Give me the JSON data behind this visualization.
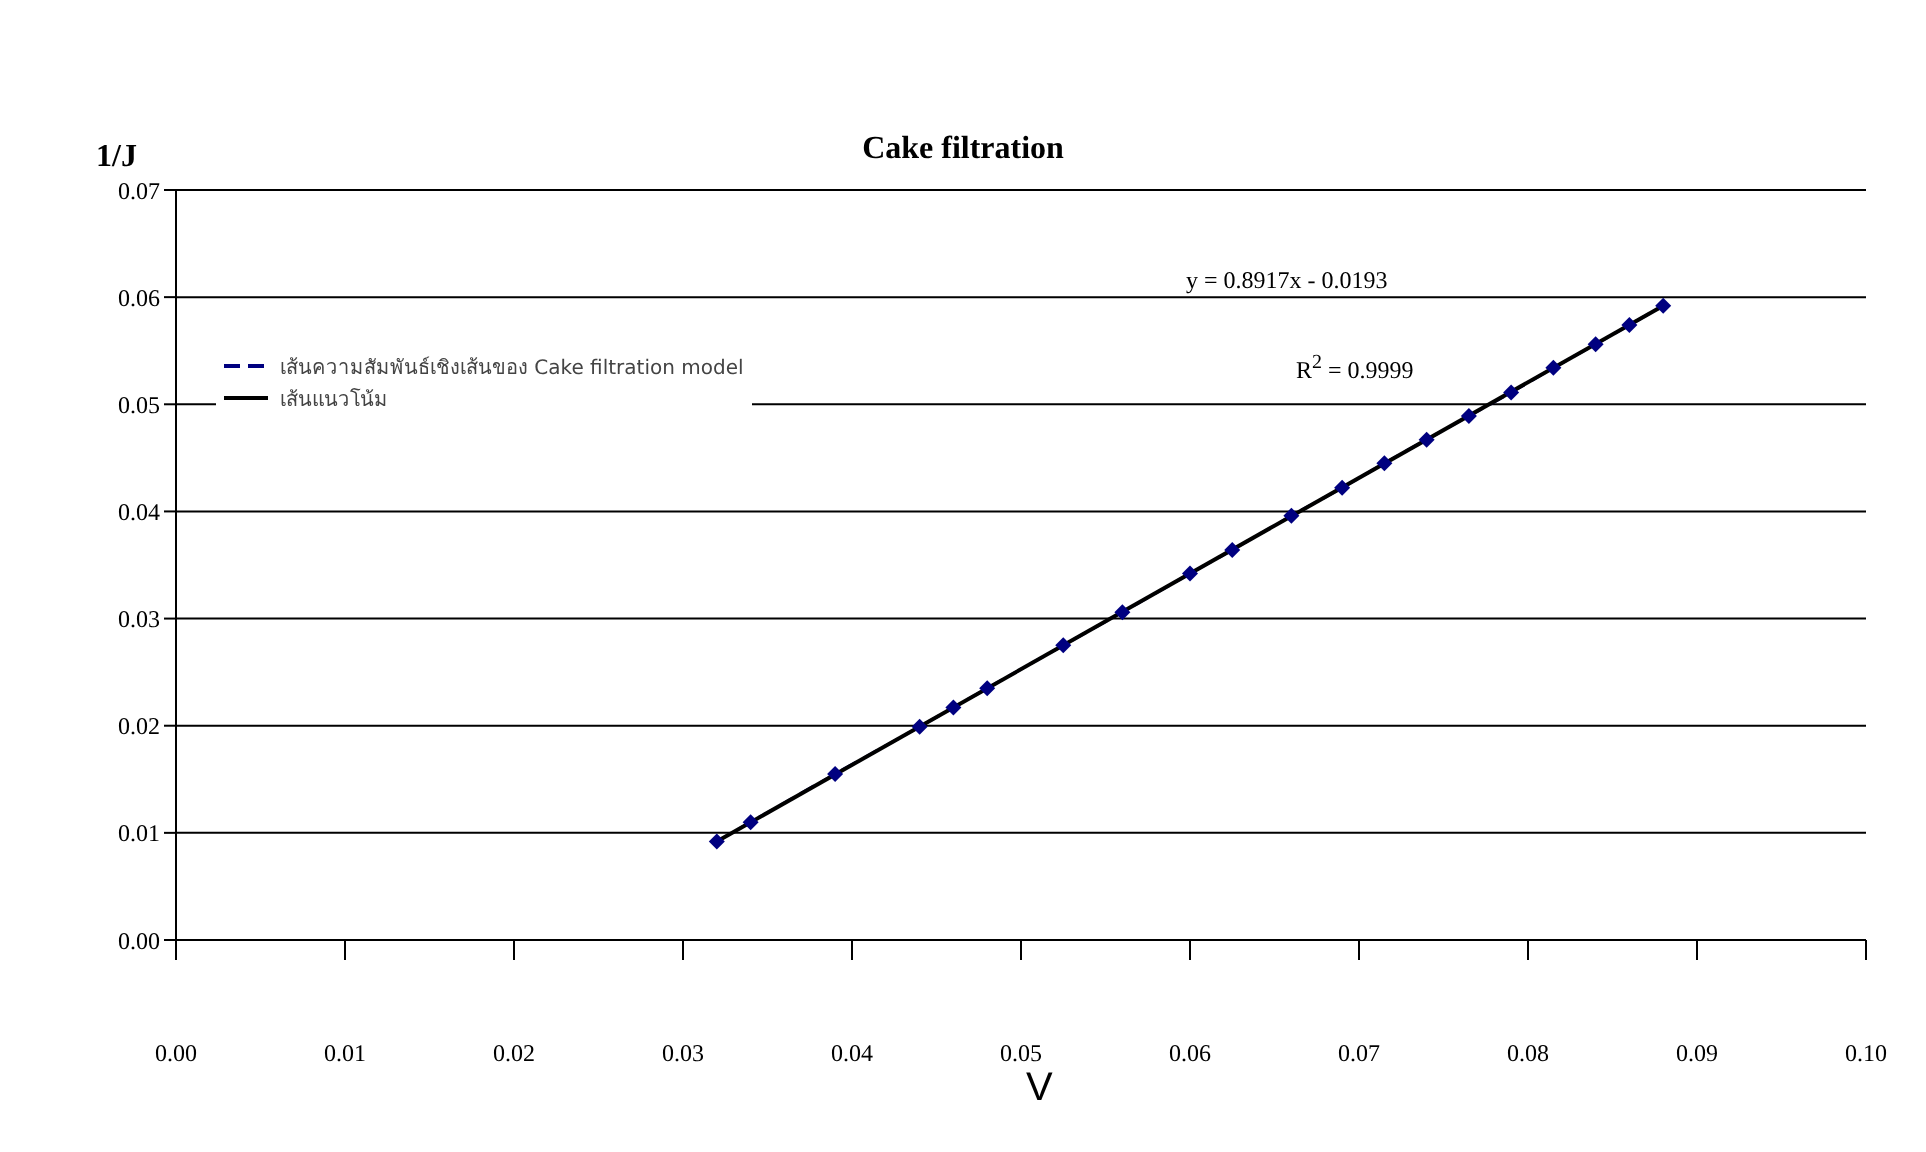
{
  "chart_data": {
    "type": "line",
    "title": "Cake filtration",
    "xlabel": "V",
    "ylabel": "1/J",
    "xlim": [
      0,
      0.1
    ],
    "xticks": [
      {
        "value": 0,
        "label": "0.00"
      },
      {
        "value": 0.01,
        "label": "0.01"
      },
      {
        "value": 0.02,
        "label": "0.02"
      },
      {
        "value": 0.03,
        "label": "0.03"
      },
      {
        "value": 0.04,
        "label": "0.04"
      },
      {
        "value": 0.05,
        "label": "0.05"
      },
      {
        "value": 0.06,
        "label": "0.06"
      },
      {
        "value": 0.07,
        "label": "0.07"
      },
      {
        "value": 0.08,
        "label": "0.08"
      },
      {
        "value": 0.09,
        "label": "0.09"
      },
      {
        "value": 0.1,
        "label": "0.10"
      }
    ],
    "ylim": [
      0,
      0.07
    ],
    "yticks": [
      {
        "value": 0,
        "label": "0.00"
      },
      {
        "value": 0.01,
        "label": "0.01"
      },
      {
        "value": 0.02,
        "label": "0.02"
      },
      {
        "value": 0.03,
        "label": "0.03"
      },
      {
        "value": 0.04,
        "label": "0.04"
      },
      {
        "value": 0.05,
        "label": "0.05"
      },
      {
        "value": 0.06,
        "label": "0.06"
      },
      {
        "value": 0.07,
        "label": "0.07"
      }
    ],
    "grid": "y",
    "legend": "top left",
    "annotations": [
      "y = 0.8917x - 0.0193",
      "R$^{2}$ = 0.9999"
    ],
    "series": [
      {
        "name": "เส้นความสัมพันธ์เชิงเส้นของ Cake filtration model",
        "color": "#000080",
        "line_style": "dashed",
        "marker": "diamond",
        "x": [
          0.032,
          0.034,
          0.039,
          0.044,
          0.046,
          0.048,
          0.0525,
          0.056,
          0.06,
          0.0625,
          0.066,
          0.069,
          0.0715,
          0.074,
          0.0765,
          0.079,
          0.0815,
          0.084,
          0.086,
          0.088
        ],
        "values": [
          0.0092,
          0.011,
          0.0155,
          0.0199,
          0.0217,
          0.0235,
          0.0275,
          0.0306,
          0.0342,
          0.0364,
          0.0396,
          0.0422,
          0.0445,
          0.0467,
          0.0489,
          0.0511,
          0.0534,
          0.0556,
          0.0574,
          0.0592
        ]
      },
      {
        "name": "เส้นแนวโน้ม",
        "color": "#000000",
        "line_style": "solid",
        "marker": "none",
        "x": [
          0.032,
          0.088
        ],
        "values": [
          0.0092,
          0.0592
        ]
      }
    ]
  }
}
